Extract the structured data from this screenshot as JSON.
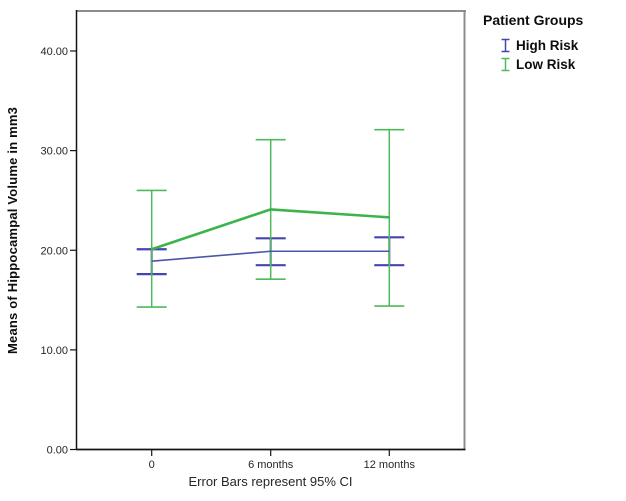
{
  "chart_data": {
    "type": "line",
    "title": "",
    "xlabel": "",
    "ylabel": "Means of Hippocampal Volume in mm3",
    "caption": "Error Bars represent 95% CI",
    "categories": [
      "0",
      "6 months",
      "12 months"
    ],
    "ylim": [
      0,
      40
    ],
    "ytick_values": [
      0,
      10,
      20,
      30,
      40
    ],
    "yticks": [
      "0.00",
      "10.00",
      "20.00",
      "30.00",
      "40.00"
    ],
    "grid": "off",
    "error_bars": "95% CI",
    "legend": {
      "title": "Patient Groups",
      "position": "top-right-outside"
    },
    "series": [
      {
        "name": "High Risk",
        "color": "#4a57a8",
        "error_bar_color": "#4545b0",
        "means": [
          18.9,
          19.9,
          19.9
        ],
        "ci_low": [
          17.6,
          18.5,
          18.5
        ],
        "ci_high": [
          20.1,
          21.2,
          21.3
        ]
      },
      {
        "name": "Low Risk",
        "color": "#3cb44b",
        "error_bar_color": "#4fb95b",
        "means": [
          20.1,
          24.1,
          23.3
        ],
        "ci_low": [
          14.3,
          17.1,
          14.4
        ],
        "ci_high": [
          26.0,
          31.1,
          32.1
        ]
      }
    ],
    "frame_colors": {
      "top_right_border": "#8c8c8c",
      "axis": "#141414",
      "tick_text": "#262626"
    }
  }
}
